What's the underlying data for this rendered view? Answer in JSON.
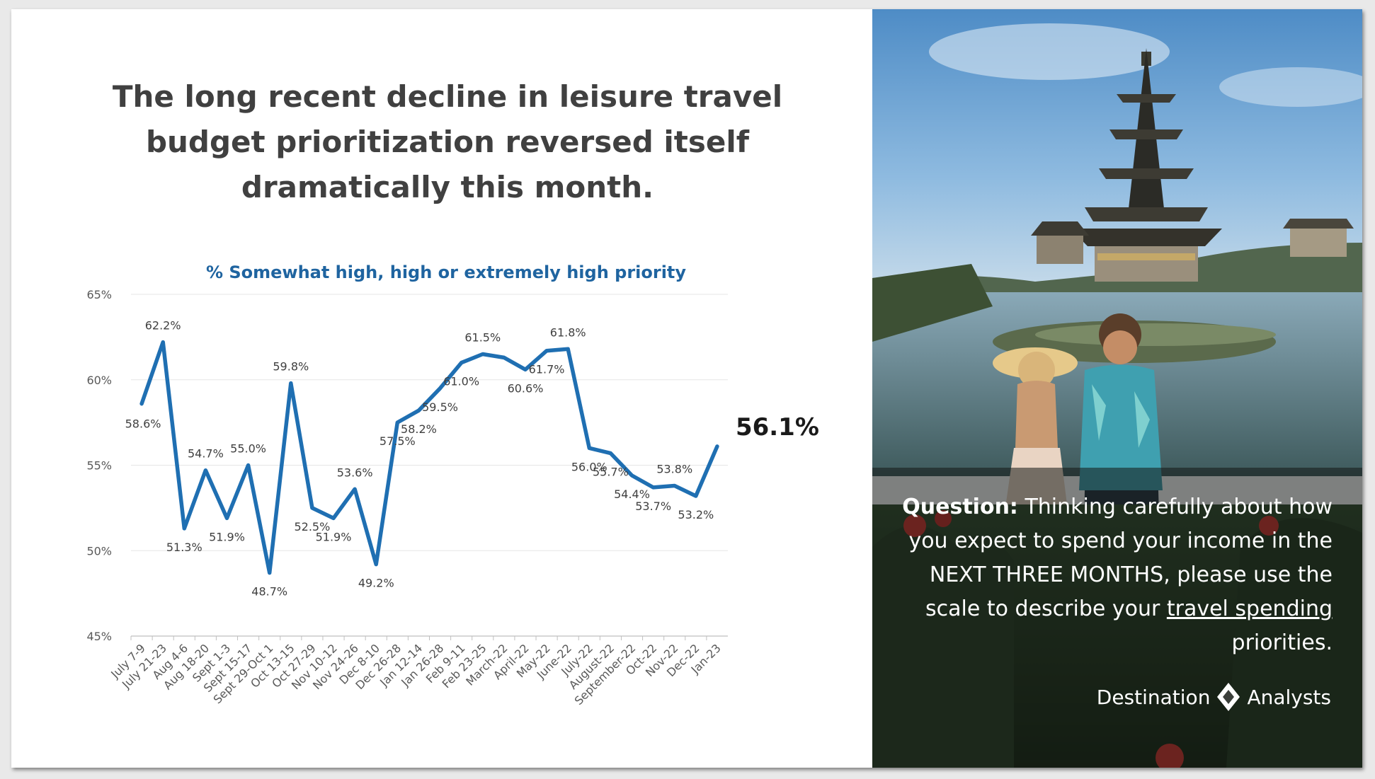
{
  "headline": "The long recent decline in leisure travel budget prioritization reversed itself dramatically this month.",
  "question": {
    "lead": "Question:",
    "text_before": "Thinking carefully about how you expect to spend your income in the NEXT THREE MONTHS, please use the scale to describe your",
    "underlined": "travel spending",
    "text_after": "priorities."
  },
  "brand": {
    "left": "Destination",
    "right": "Analysts",
    "mark_icon": "diamond-logo-icon"
  },
  "colors": {
    "line": "#1f6fb2",
    "subtitle": "#1f64a0",
    "headline": "#404040"
  },
  "chart_data": {
    "type": "line",
    "title": "% Somewhat high, high or extremely high priority",
    "xlabel": "",
    "ylabel": "",
    "ylim": [
      45,
      65
    ],
    "yticks": [
      "45%",
      "50%",
      "55%",
      "60%",
      "65%"
    ],
    "grid": true,
    "legend": "none",
    "categories": [
      "July 7-9",
      "July 21-23",
      "Aug 4-6",
      "Aug 18-20",
      "Sept 1-3",
      "Sept 15-17",
      "Sept 29-Oct 1",
      "Oct 13-15",
      "Oct 27-29",
      "Nov 10-12",
      "Nov 24-26",
      "Dec 8-10",
      "Dec 26-28",
      "Jan 12-14",
      "Jan 26-28",
      "Feb 9-11",
      "Feb 23-25",
      "March-22",
      "April-22",
      "May-22",
      "June-22",
      "July-22",
      "August-22",
      "September-22",
      "Oct-22",
      "Nov-22",
      "Dec-22",
      "Jan-23"
    ],
    "values": [
      58.6,
      62.2,
      51.3,
      54.7,
      51.9,
      55.0,
      48.7,
      59.8,
      52.5,
      51.9,
      53.6,
      49.2,
      57.5,
      58.2,
      59.5,
      61.0,
      61.5,
      61.3,
      60.6,
      61.7,
      61.8,
      56.0,
      55.7,
      54.4,
      53.7,
      53.8,
      53.2,
      56.1
    ],
    "labels": [
      "58.6%",
      "62.2%",
      "51.3%",
      "54.7%",
      "51.9%",
      "55.0%",
      "48.7%",
      "59.8%",
      "52.5%",
      "51.9%",
      "53.6%",
      "49.2%",
      "57.5%",
      "58.2%",
      "59.5%",
      "61.0%",
      "61.5%",
      "",
      "60.6%",
      "61.7%",
      "61.8%",
      "56.0%",
      "55.7%",
      "54.4%",
      "53.7%",
      "53.8%",
      "53.2%",
      "56.1%"
    ],
    "highlight_last": true
  }
}
